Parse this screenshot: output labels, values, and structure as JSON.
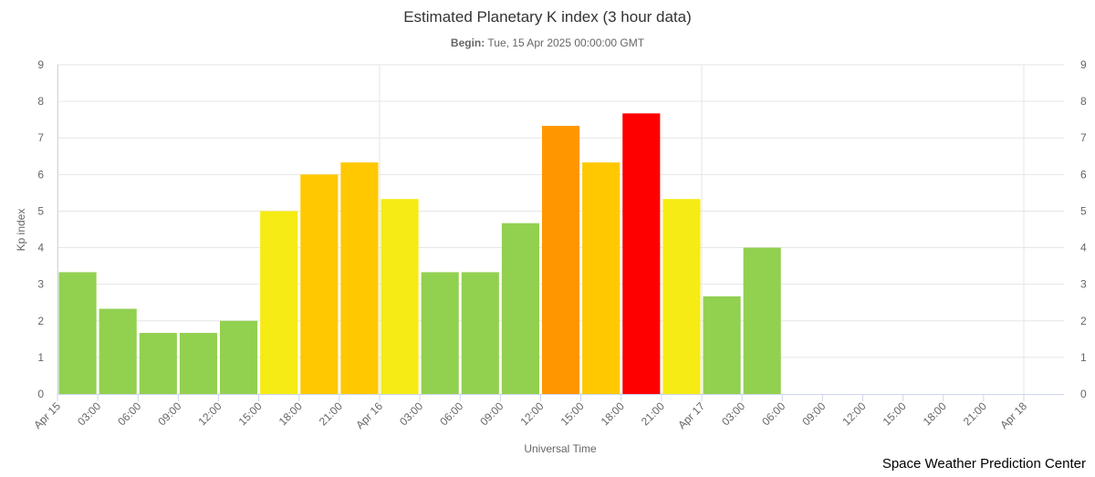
{
  "chart_data": {
    "type": "bar",
    "title": "Estimated Planetary K index (3 hour data)",
    "subtitle_label": "Begin:",
    "subtitle_value": "Tue, 15 Apr 2025 00:00:00 GMT",
    "xlabel": "Universal Time",
    "ylabel": "Kp index",
    "ylim": [
      0,
      9
    ],
    "yticks": [
      "0",
      "1",
      "2",
      "3",
      "4",
      "5",
      "6",
      "7",
      "8",
      "9"
    ],
    "xticks": [
      "Apr 15",
      "03:00",
      "06:00",
      "09:00",
      "12:00",
      "15:00",
      "18:00",
      "21:00",
      "Apr 16",
      "03:00",
      "06:00",
      "09:00",
      "12:00",
      "15:00",
      "18:00",
      "21:00",
      "Apr 17",
      "03:00",
      "06:00",
      "09:00",
      "12:00",
      "15:00",
      "18:00",
      "21:00",
      "Apr 18"
    ],
    "values": [
      3.33,
      2.33,
      1.67,
      1.67,
      2.0,
      5.0,
      6.0,
      6.33,
      5.33,
      3.33,
      3.33,
      4.67,
      7.33,
      6.33,
      7.67,
      5.33,
      2.67,
      4.0
    ],
    "grid": true,
    "legend": "none",
    "colors": {
      "low": "#92d050",
      "g1": "#f6eb14",
      "g2": "#ffc800",
      "g3": "#ff9600",
      "g4": "#ff0000"
    }
  },
  "credit": "Space Weather Prediction Center"
}
